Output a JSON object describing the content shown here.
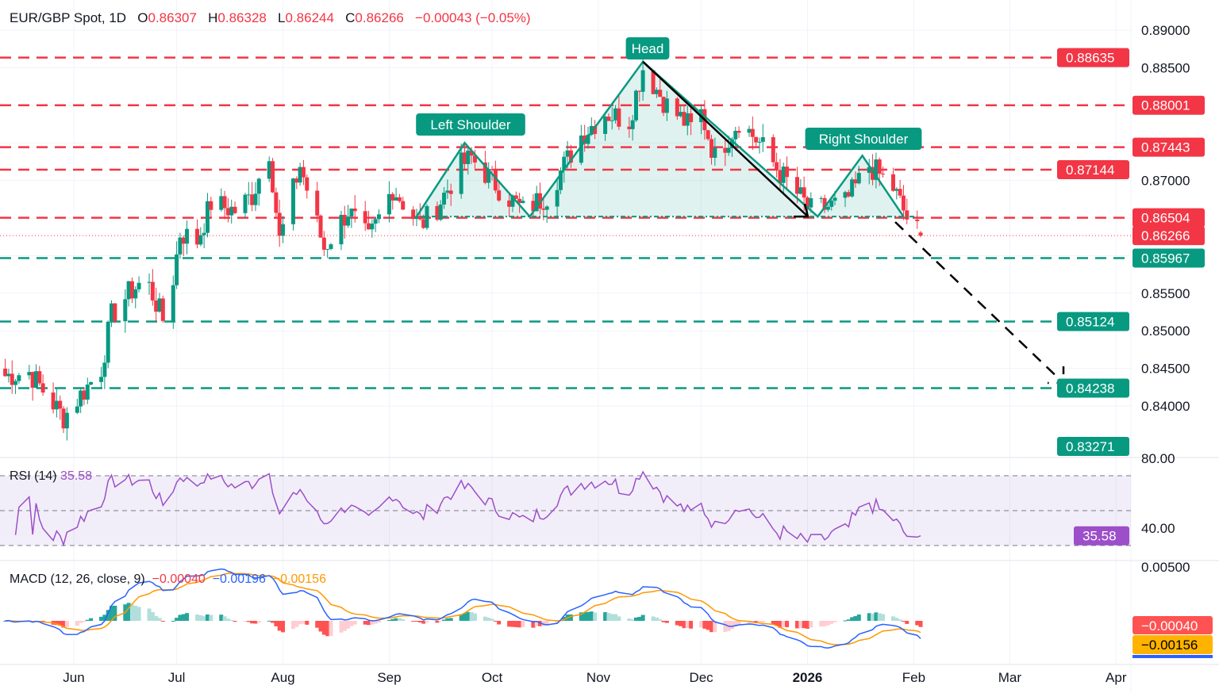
{
  "header": {
    "symbol": "EUR/GBP Spot, 1D",
    "o_label": "O",
    "o": "0.86307",
    "h_label": "H",
    "h": "0.86328",
    "l_label": "L",
    "l": "0.86244",
    "c_label": "C",
    "c": "0.86266",
    "change": "−0.00043 (−0.05%)"
  },
  "chart_data": {
    "type": "candlestick",
    "title": "EUR/GBP Spot, 1D",
    "ylim": [
      0.83,
      0.892
    ],
    "grid": true,
    "x_ticks": [
      {
        "date": "2025-06-01",
        "label": "Jun"
      },
      {
        "date": "2025-07-01",
        "label": "Jul"
      },
      {
        "date": "2025-08-01",
        "label": "Aug"
      },
      {
        "date": "2025-09-01",
        "label": "Sep"
      },
      {
        "date": "2025-10-01",
        "label": "Oct"
      },
      {
        "date": "2025-11-01",
        "label": "Nov"
      },
      {
        "date": "2025-12-01",
        "label": "Dec"
      },
      {
        "date": "2026-01-01",
        "label": "2026",
        "bold": true
      },
      {
        "date": "2026-02-01",
        "label": "Feb"
      },
      {
        "date": "2026-03-01",
        "label": "Mar"
      },
      {
        "date": "2026-04-01",
        "label": "Apr"
      }
    ],
    "y_ticks": [
      "0.89000",
      "0.88500",
      "0.87000",
      "0.85500",
      "0.85000",
      "0.84500",
      "0.84000"
    ],
    "approx_closes": [
      [
        "2025-05-12",
        0.844
      ],
      [
        "2025-05-19",
        0.8445
      ],
      [
        "2025-05-29",
        0.8385
      ],
      [
        "2025-06-09",
        0.845
      ],
      [
        "2025-06-12",
        0.852
      ],
      [
        "2025-06-17",
        0.855
      ],
      [
        "2025-06-22",
        0.857
      ],
      [
        "2025-06-27",
        0.8515
      ],
      [
        "2025-06-30",
        0.857
      ],
      [
        "2025-07-02",
        0.863
      ],
      [
        "2025-07-07",
        0.862
      ],
      [
        "2025-07-11",
        0.867
      ],
      [
        "2025-07-18",
        0.866
      ],
      [
        "2025-07-23",
        0.868
      ],
      [
        "2025-07-28",
        0.874
      ],
      [
        "2025-07-31",
        0.862
      ],
      [
        "2025-08-06",
        0.872
      ],
      [
        "2025-08-13",
        0.861
      ],
      [
        "2025-08-20",
        0.866
      ],
      [
        "2025-08-26",
        0.862
      ],
      [
        "2025-09-02",
        0.869
      ],
      [
        "2025-09-10",
        0.864
      ],
      [
        "2025-09-15",
        0.8665
      ],
      [
        "2025-09-22",
        0.872
      ],
      [
        "2025-09-25",
        0.873
      ],
      [
        "2025-10-03",
        0.869
      ],
      [
        "2025-10-10",
        0.866
      ],
      [
        "2025-10-17",
        0.868
      ],
      [
        "2025-10-27",
        0.876
      ],
      [
        "2025-11-03",
        0.879
      ],
      [
        "2025-11-10",
        0.878
      ],
      [
        "2025-11-14",
        0.885
      ],
      [
        "2025-11-21",
        0.88
      ],
      [
        "2025-11-28",
        0.877
      ],
      [
        "2025-12-01",
        0.879
      ],
      [
        "2025-12-05",
        0.873
      ],
      [
        "2025-12-12",
        0.878
      ],
      [
        "2025-12-18",
        0.875
      ],
      [
        "2025-12-24",
        0.871
      ],
      [
        "2026-01-02",
        0.866
      ],
      [
        "2026-01-12",
        0.867
      ],
      [
        "2026-01-19",
        0.872
      ],
      [
        "2026-01-26",
        0.869
      ],
      [
        "2026-01-30",
        0.865
      ],
      [
        "2026-02-03",
        0.86266
      ]
    ],
    "levels": [
      {
        "price": 0.88635,
        "label": "0.88635",
        "color": "#f23645"
      },
      {
        "price": 0.88001,
        "label": "0.88001",
        "color": "#f23645"
      },
      {
        "price": 0.87443,
        "label": "0.87443",
        "color": "#f23645"
      },
      {
        "price": 0.87144,
        "label": "0.87144",
        "color": "#f23645"
      },
      {
        "price": 0.86504,
        "label": "0.86504",
        "color": "#f23645"
      },
      {
        "price": 0.85967,
        "label": "0.85967",
        "color": "#089981"
      },
      {
        "price": 0.85124,
        "label": "0.85124",
        "color": "#089981"
      },
      {
        "price": 0.84238,
        "label": "0.84238",
        "color": "#089981"
      }
    ],
    "extra_tag": {
      "price": 0.83271,
      "label": "0.83271",
      "color": "#089981"
    },
    "last_price": {
      "price": 0.86266,
      "label": "0.86266",
      "color": "#f23645"
    },
    "pattern": {
      "name": "Head and Shoulders",
      "labels": {
        "left": "Left Shoulder",
        "head": "Head",
        "right": "Right Shoulder"
      },
      "points": [
        [
          "2025-09-09",
          0.8652
        ],
        [
          "2025-09-23",
          0.875
        ],
        [
          "2025-10-12",
          0.8652
        ],
        [
          "2025-11-14",
          0.8858
        ],
        [
          "2026-01-04",
          0.8652
        ],
        [
          "2026-01-17",
          0.8733
        ],
        [
          "2026-01-29",
          0.8652
        ]
      ],
      "neckline": 0.8652,
      "color": "#089981"
    },
    "rsi": {
      "label": "RSI (14)",
      "value": "35.58",
      "levels": [
        70,
        50,
        30
      ],
      "ticks": [
        "80.00",
        "40.00"
      ],
      "color": "#9c4fc9"
    },
    "macd": {
      "label": "MACD (12, 26, close, 9)",
      "histogram": "−0.00040",
      "macd": "−0.00196",
      "signal": "−0.00156",
      "tag_hist": "−0.00040",
      "tag_signal": "−0.00156",
      "tick": "0.00500",
      "colors": {
        "macd": "#2962ff",
        "signal": "#ff9800",
        "hist_up": "#26a69a",
        "hist_up_light": "#b2dfdb",
        "hist_down": "#ff5252",
        "hist_down_light": "#ffcdd2"
      }
    }
  }
}
